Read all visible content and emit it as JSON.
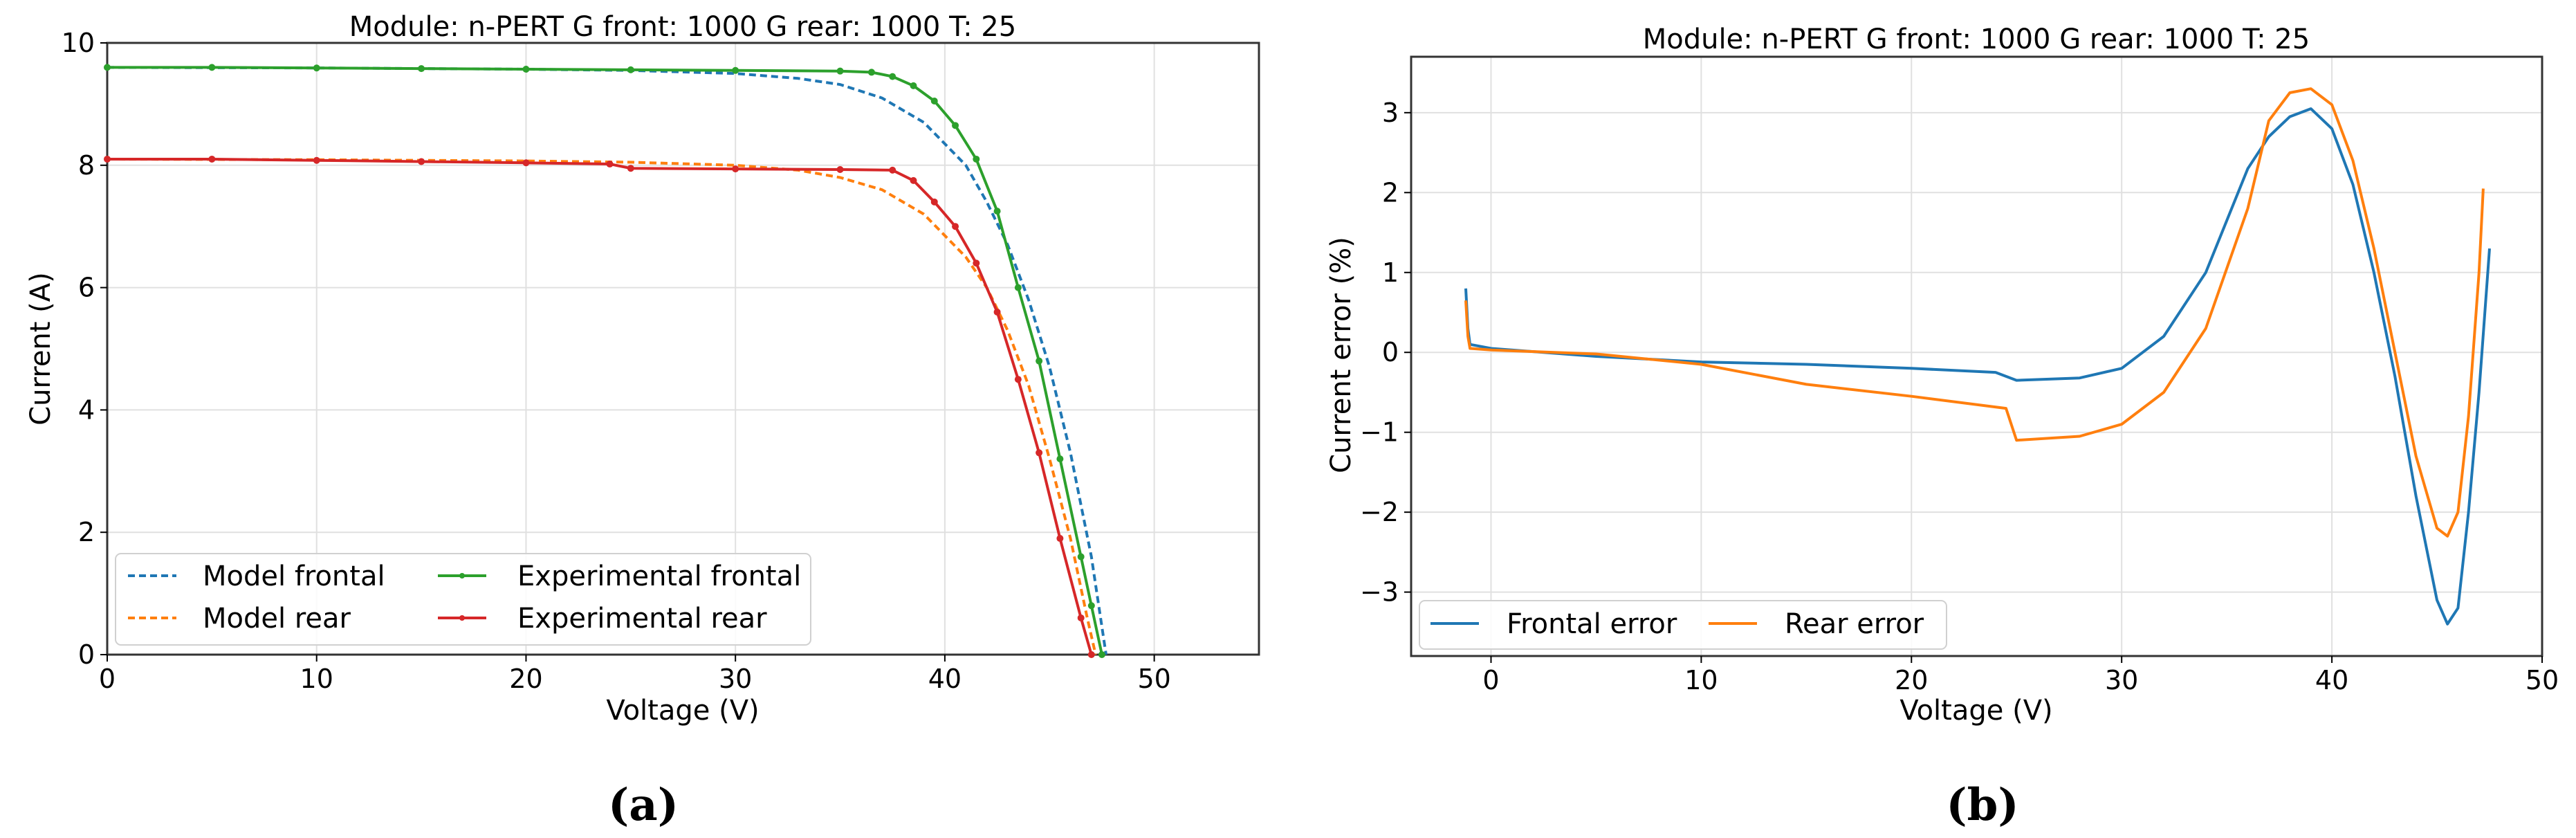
{
  "chart_data": [
    {
      "type": "line",
      "panel": "(a)",
      "title": "Module: n-PERT   G front: 1000   G rear: 1000   T: 25",
      "xlabel": "Voltage (V)",
      "ylabel": "Current (A)",
      "xlim": [
        0,
        55
      ],
      "ylim": [
        0,
        10
      ],
      "xticks": [
        0,
        10,
        20,
        30,
        40,
        50
      ],
      "yticks": [
        0,
        2,
        4,
        6,
        8,
        10
      ],
      "grid": true,
      "legend_position": "lower left",
      "series": [
        {
          "name": "Model frontal",
          "color": "#1f77b4",
          "style": "dashed",
          "x": [
            0,
            10,
            20,
            25,
            30,
            33,
            35,
            37,
            39,
            41,
            42,
            43,
            44,
            45,
            46,
            47,
            47.7
          ],
          "y": [
            9.6,
            9.59,
            9.57,
            9.55,
            9.5,
            9.42,
            9.32,
            9.1,
            8.7,
            8.0,
            7.4,
            6.7,
            5.8,
            4.7,
            3.3,
            1.6,
            0
          ]
        },
        {
          "name": "Model rear",
          "color": "#ff7f0e",
          "style": "dashed",
          "x": [
            0,
            10,
            20,
            25,
            30,
            33,
            35,
            37,
            39,
            41,
            42,
            43,
            44,
            45,
            46,
            46.8,
            47.2
          ],
          "y": [
            8.1,
            8.09,
            8.07,
            8.05,
            8.0,
            7.92,
            7.8,
            7.6,
            7.2,
            6.5,
            6.0,
            5.3,
            4.4,
            3.2,
            1.9,
            0.6,
            0
          ]
        },
        {
          "name": "Experimental frontal",
          "color": "#2ca02c",
          "style": "solid-marker",
          "x": [
            0,
            5,
            10,
            15,
            20,
            25,
            30,
            35,
            36.5,
            37.5,
            38.5,
            39.5,
            40.5,
            41.5,
            42.5,
            43.5,
            44.5,
            45.5,
            46.5,
            47,
            47.5
          ],
          "y": [
            9.6,
            9.6,
            9.59,
            9.58,
            9.57,
            9.56,
            9.55,
            9.54,
            9.52,
            9.45,
            9.3,
            9.05,
            8.65,
            8.1,
            7.25,
            6.0,
            4.8,
            3.2,
            1.6,
            0.8,
            0
          ]
        },
        {
          "name": "Experimental rear",
          "color": "#d62728",
          "style": "solid-marker",
          "x": [
            0,
            5,
            10,
            15,
            20,
            24,
            25,
            30,
            35,
            37.5,
            38.5,
            39.5,
            40.5,
            41.5,
            42.5,
            43.5,
            44.5,
            45.5,
            46.5,
            47
          ],
          "y": [
            8.1,
            8.1,
            8.08,
            8.06,
            8.04,
            8.02,
            7.95,
            7.94,
            7.93,
            7.92,
            7.75,
            7.4,
            7.0,
            6.4,
            5.6,
            4.5,
            3.3,
            1.9,
            0.6,
            0
          ]
        }
      ]
    },
    {
      "type": "line",
      "panel": "(b)",
      "title": "Module: n-PERT   G front: 1000   G rear: 1000   T: 25",
      "xlabel": "Voltage (V)",
      "ylabel": "Current error (%)",
      "xlim": [
        -3.8,
        50
      ],
      "ylim": [
        -3.8,
        3.7
      ],
      "xticks": [
        0,
        10,
        20,
        30,
        40,
        50
      ],
      "yticks": [
        -3,
        -2,
        -1,
        0,
        1,
        2,
        3
      ],
      "grid": true,
      "legend_position": "lower left",
      "series": [
        {
          "name": "Frontal error",
          "color": "#1f77b4",
          "x": [
            -1.2,
            -1.1,
            -1.0,
            0,
            5,
            10,
            15,
            20,
            24,
            25,
            28,
            30,
            32,
            34,
            36,
            37,
            38,
            39,
            40,
            41,
            42,
            43,
            44,
            45,
            45.5,
            46,
            46.5,
            47,
            47.5
          ],
          "y": [
            0.8,
            0.3,
            0.1,
            0.05,
            -0.05,
            -0.12,
            -0.15,
            -0.2,
            -0.25,
            -0.35,
            -0.32,
            -0.2,
            0.2,
            1.0,
            2.3,
            2.7,
            2.95,
            3.05,
            2.8,
            2.1,
            1.0,
            -0.3,
            -1.8,
            -3.1,
            -3.4,
            -3.2,
            -2.0,
            -0.5,
            1.3
          ]
        },
        {
          "name": "Rear error",
          "color": "#ff7f0e",
          "x": [
            -1.2,
            -1.1,
            -1.0,
            0,
            5,
            10,
            15,
            20,
            24.5,
            25,
            28,
            30,
            32,
            34,
            36,
            37,
            38,
            39,
            40,
            41,
            42,
            43,
            44,
            45,
            45.5,
            46,
            46.5,
            47,
            47.2
          ],
          "y": [
            0.65,
            0.2,
            0.05,
            0.03,
            -0.02,
            -0.15,
            -0.4,
            -0.55,
            -0.7,
            -1.1,
            -1.05,
            -0.9,
            -0.5,
            0.3,
            1.8,
            2.9,
            3.25,
            3.3,
            3.1,
            2.4,
            1.3,
            0.0,
            -1.3,
            -2.2,
            -2.3,
            -2.0,
            -0.8,
            1.0,
            2.05
          ]
        }
      ]
    }
  ],
  "captions": {
    "a": "(a)",
    "b": "(b)"
  }
}
